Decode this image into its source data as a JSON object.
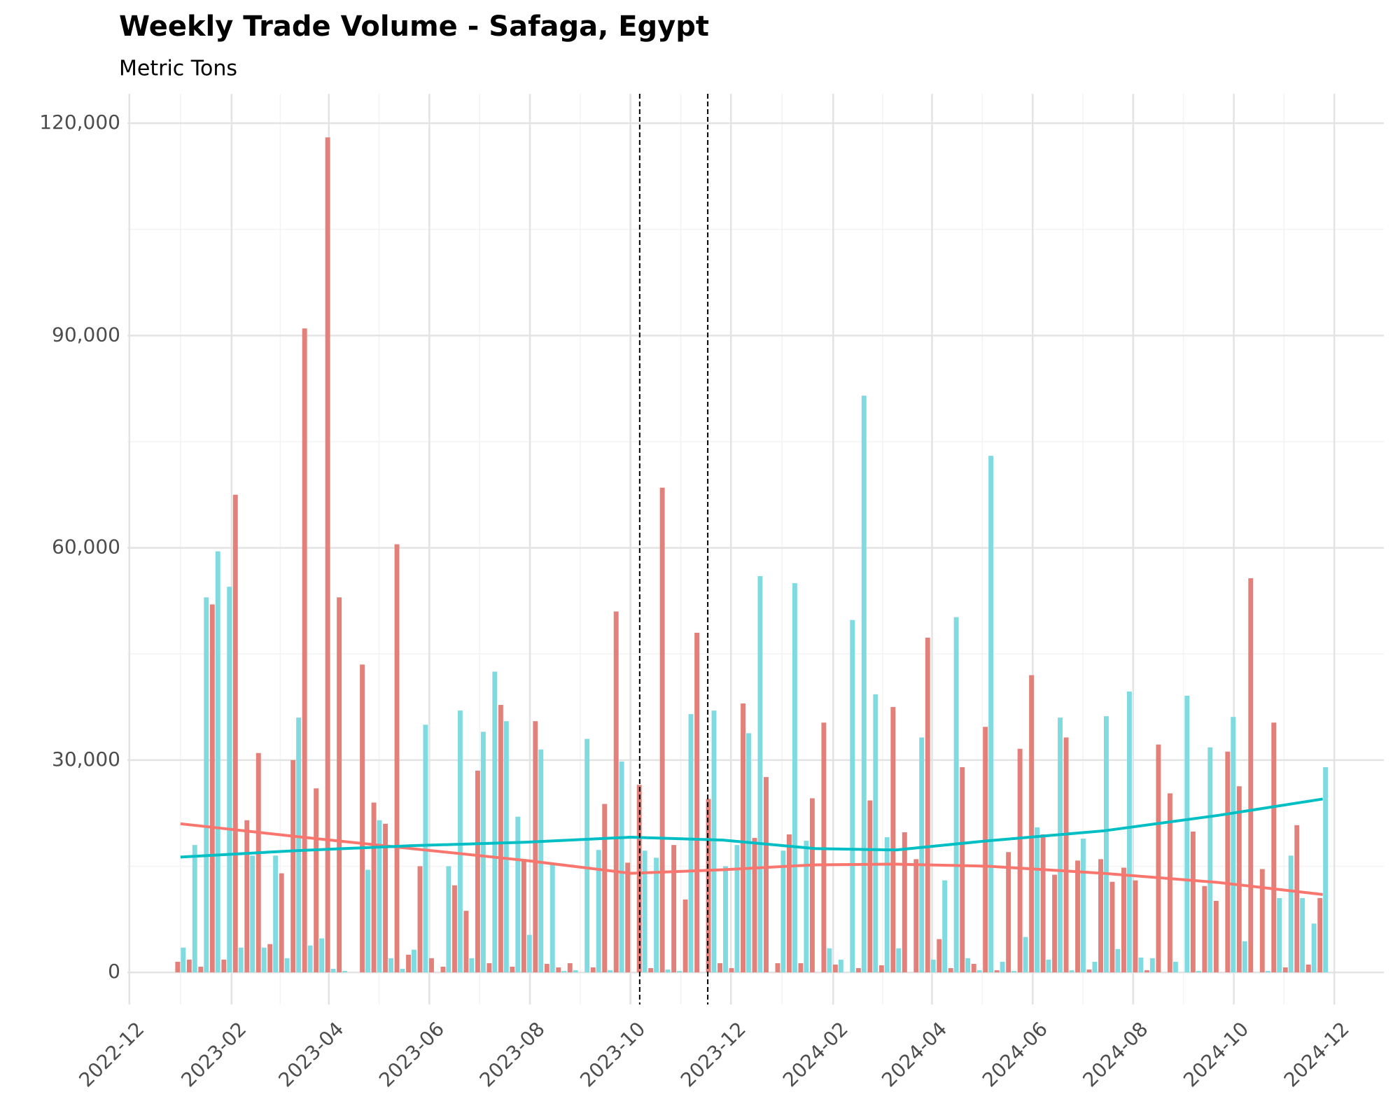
{
  "chart_data": {
    "type": "bar",
    "title": "Weekly Trade Volume - Safaga, Egypt",
    "subtitle": "Metric Tons",
    "series": [
      {
        "color": "#E4807A",
        "line_color": "#F8766D",
        "values": [
          1500,
          1800,
          800,
          52000,
          1800,
          67500,
          21500,
          31000,
          4000,
          14000,
          30000,
          91000,
          26000,
          118000,
          53000,
          0,
          43500,
          24000,
          21000,
          60500,
          2500,
          15000,
          2000,
          800,
          12300,
          8700,
          28500,
          1300,
          37800,
          800,
          16000,
          35500,
          1200,
          700,
          1300,
          0,
          700,
          23800,
          51000,
          15500,
          26500,
          600,
          68500,
          18000,
          10300,
          48000,
          24500,
          1300,
          600,
          38000,
          19000,
          27600,
          1300,
          19500,
          1300,
          24600,
          35300,
          1100,
          0,
          600,
          24300,
          1000,
          37500,
          19800,
          16000,
          47300,
          4700,
          600,
          29000,
          1200,
          34700,
          300,
          17000,
          31600,
          42000,
          19500,
          13800,
          33200,
          15800,
          400,
          16000,
          12800,
          14800,
          13000,
          300,
          32200,
          25300,
          0,
          19900,
          12200,
          10100,
          31200,
          26300,
          55700,
          14600,
          35300,
          700,
          20800,
          1100,
          10500
        ],
        "trend": [
          21000,
          19200,
          17500,
          15800,
          14000,
          14500,
          15200,
          15300,
          15000,
          14000,
          12700,
          11000
        ]
      },
      {
        "color": "#7FDBE0",
        "line_color": "#00BFC4",
        "values": [
          3500,
          18000,
          53000,
          59500,
          54500,
          3500,
          16500,
          3500,
          16500,
          2000,
          36000,
          3800,
          4800,
          500,
          200,
          0,
          14500,
          21500,
          2000,
          500,
          3200,
          35000,
          0,
          15000,
          37000,
          2000,
          34000,
          42500,
          35500,
          22000,
          5300,
          31500,
          15500,
          200,
          300,
          33000,
          17300,
          300,
          29800,
          0,
          17200,
          16200,
          400,
          200,
          36500,
          0,
          37000,
          15000,
          18000,
          33800,
          56000,
          0,
          17200,
          55000,
          18600,
          0,
          3400,
          1800,
          49800,
          81500,
          39300,
          19100,
          3400,
          0,
          33200,
          1800,
          13000,
          50200,
          2000,
          300,
          73000,
          1500,
          200,
          5000,
          20500,
          1800,
          36000,
          300,
          18900,
          1500,
          36200,
          3300,
          39700,
          2100,
          2000,
          0,
          1500,
          39100,
          200,
          31800,
          0,
          36100,
          4400,
          0,
          200,
          10500,
          16500,
          10500,
          6900,
          29000
        ],
        "trend": [
          16300,
          17200,
          17900,
          18400,
          19100,
          18700,
          17500,
          17300,
          18600,
          20000,
          22200,
          24500
        ]
      }
    ],
    "trend_x": [
      0,
      10,
      20,
      30,
      39,
      47,
      55,
      62,
      70,
      80,
      90,
      99
    ],
    "xlim": [
      -4.6,
      104.3
    ],
    "xticks": [
      {
        "value": -4.43,
        "label": "2022-12"
      },
      {
        "value": 4.43,
        "label": "2023-02"
      },
      {
        "value": 12.86,
        "label": "2023-04"
      },
      {
        "value": 21.57,
        "label": "2023-06"
      },
      {
        "value": 30.29,
        "label": "2023-08"
      },
      {
        "value": 39,
        "label": "2023-10"
      },
      {
        "value": 47.71,
        "label": "2023-12"
      },
      {
        "value": 56.57,
        "label": "2024-02"
      },
      {
        "value": 65.14,
        "label": "2024-04"
      },
      {
        "value": 73.86,
        "label": "2024-06"
      },
      {
        "value": 82.57,
        "label": "2024-08"
      },
      {
        "value": 91.29,
        "label": "2024-10"
      },
      {
        "value": 100,
        "label": "2024-12"
      }
    ],
    "ylim": [
      -4540,
      124160
    ],
    "yticks": [
      0,
      {
        "value": 30000,
        "label": "30,000"
      },
      {
        "value": 60000,
        "label": "60,000"
      },
      {
        "value": 90000,
        "label": "90,000"
      },
      {
        "value": 120000,
        "label": "120,000"
      }
    ],
    "vlines": [
      39.8,
      45.7
    ],
    "grid": true,
    "minor_grid": true
  }
}
